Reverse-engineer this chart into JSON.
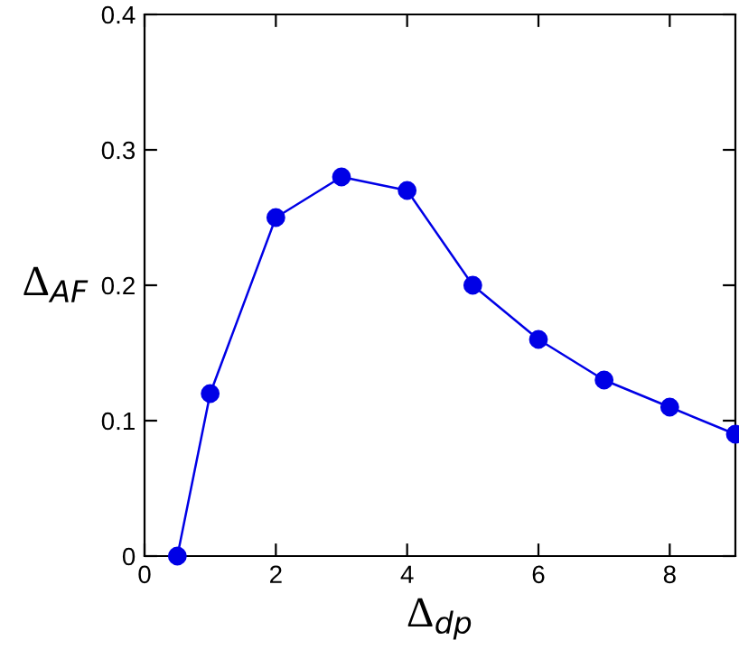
{
  "chart_data": {
    "type": "line",
    "xlabel": "Δ$_{dp}$",
    "ylabel": "Δ$_{AF}$",
    "x": [
      0.5,
      1,
      2,
      3,
      4,
      5,
      6,
      7,
      8,
      9
    ],
    "series": [
      {
        "color": "#0000e6",
        "values": [
          0,
          0.12,
          0.25,
          0.28,
          0.27,
          0.2,
          0.16,
          0.13,
          0.11,
          0.09
        ]
      }
    ],
    "xlim": [
      0,
      9
    ],
    "xticks": [
      0,
      2,
      4,
      6,
      8
    ],
    "ylim": [
      0,
      0.4
    ],
    "yticks": [
      0,
      0.1,
      0.2,
      0.3,
      0.4
    ],
    "marker": "circle",
    "line_style": "solid",
    "grid": false,
    "legend": false
  }
}
